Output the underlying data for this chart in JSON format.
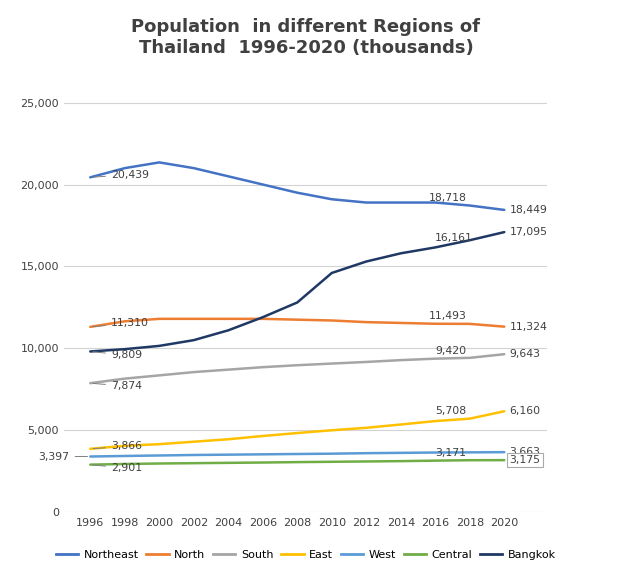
{
  "title": "Population  in different Regions of\nThailand  1996-2020 (thousands)",
  "years": [
    1996,
    1998,
    2000,
    2002,
    2004,
    2006,
    2008,
    2010,
    2012,
    2014,
    2016,
    2018,
    2020
  ],
  "series": {
    "Northeast": {
      "color": "#4472C4",
      "values": [
        20439,
        21000,
        21350,
        21000,
        20500,
        20000,
        19500,
        19100,
        18900,
        18900,
        18900,
        18718,
        18449
      ]
    },
    "North": {
      "color": "#ED7D31",
      "values": [
        11310,
        11650,
        11800,
        11800,
        11800,
        11800,
        11750,
        11700,
        11600,
        11550,
        11500,
        11493,
        11324
      ]
    },
    "South": {
      "color": "#A5A5A5",
      "values": [
        7874,
        8150,
        8350,
        8550,
        8700,
        8850,
        8970,
        9070,
        9170,
        9280,
        9370,
        9420,
        9643
      ]
    },
    "East": {
      "color": "#FFC000",
      "values": [
        3866,
        4050,
        4150,
        4300,
        4450,
        4650,
        4830,
        5000,
        5150,
        5350,
        5560,
        5708,
        6160
      ]
    },
    "West": {
      "color": "#5B9BD5",
      "values": [
        3397,
        3430,
        3460,
        3490,
        3510,
        3530,
        3550,
        3570,
        3600,
        3620,
        3640,
        3650,
        3663
      ]
    },
    "Central": {
      "color": "#70AD47",
      "values": [
        2901,
        2940,
        2970,
        2990,
        3010,
        3030,
        3055,
        3075,
        3095,
        3115,
        3145,
        3171,
        3175
      ]
    },
    "Bangkok": {
      "color": "#1F3864",
      "values": [
        9809,
        9950,
        10150,
        10500,
        11100,
        11900,
        12800,
        14600,
        15300,
        15800,
        16161,
        16600,
        17095
      ]
    }
  },
  "start_labels": {
    "Northeast": {
      "value": 20439,
      "text": "20,439"
    },
    "North": {
      "value": 11310,
      "text": "11,310"
    },
    "South": {
      "value": 7874,
      "text": "7,874"
    },
    "East": {
      "value": 3866,
      "text": "3,866"
    },
    "West": {
      "value": 3397,
      "text": "3,397"
    },
    "Central": {
      "value": 2901,
      "text": "2,901"
    },
    "Bangkok": {
      "value": 9809,
      "text": "9,809"
    }
  },
  "mid_labels": {
    "Northeast": {
      "year": 2018,
      "value": 18718,
      "text": "18,718"
    },
    "North": {
      "year": 2018,
      "value": 11493,
      "text": "11,493"
    },
    "South": {
      "year": 2018,
      "value": 9420,
      "text": "9,420"
    },
    "East": {
      "year": 2018,
      "value": 5708,
      "text": "5,708"
    },
    "Central": {
      "year": 2018,
      "value": 3171,
      "text": "3,171"
    },
    "Bangkok": {
      "year": 2016,
      "value": 16161,
      "text": "16,161"
    }
  },
  "end_labels": {
    "Northeast": {
      "value": 18449,
      "text": "18,449"
    },
    "North": {
      "value": 11324,
      "text": "11,324"
    },
    "South": {
      "value": 9643,
      "text": "9,643"
    },
    "East": {
      "value": 6160,
      "text": "6,160"
    },
    "West": {
      "value": 3663,
      "text": "3,663"
    },
    "Central": {
      "value": 3175,
      "text": "3,175",
      "boxed": true
    },
    "Bangkok": {
      "value": 17095,
      "text": "17,095"
    }
  },
  "ylim": [
    0,
    27000
  ],
  "yticks": [
    0,
    5000,
    10000,
    15000,
    20000,
    25000
  ],
  "background_color": "#FFFFFF",
  "grid_color": "#D3D3D3",
  "title_color": "#404040",
  "title_fontsize": 13,
  "legend_order": [
    "Northeast",
    "North",
    "South",
    "East",
    "West",
    "Central",
    "Bangkok"
  ]
}
